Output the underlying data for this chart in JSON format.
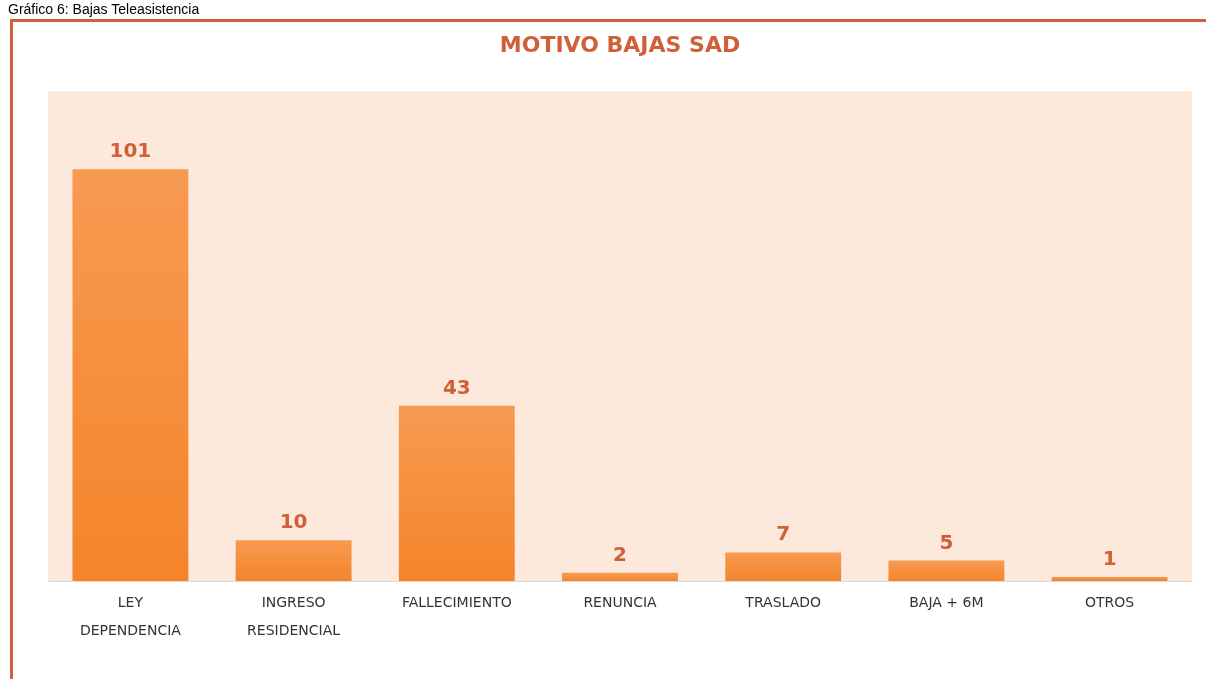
{
  "chart_data": {
    "type": "bar",
    "title": "MOTIVO BAJAS SAD",
    "annotations": [
      "Gráfico 6: Bajas Teleasistencia"
    ],
    "categories": [
      "LEY DEPENDENCIA",
      "INGRESO RESIDENCIAL",
      "FALLECIMIENTO",
      "RENUNCIA",
      "TRASLADO",
      "BAJA + 6M",
      "OTROS"
    ],
    "values": [
      101,
      10,
      43,
      2,
      7,
      5,
      1
    ],
    "color": "#f5842a",
    "data_labels": true
  }
}
